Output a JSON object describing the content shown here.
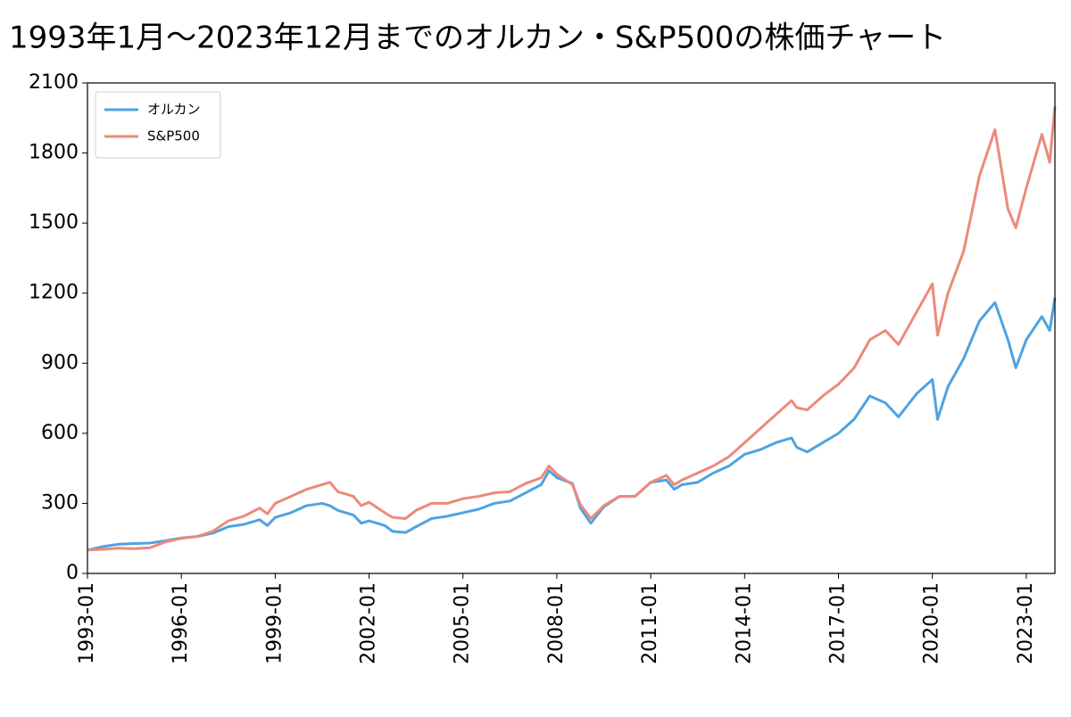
{
  "chart_data": {
    "type": "line",
    "title": "1993年1月～2023年12月までのオルカン・S&P500の株価チャート",
    "x": [
      "1993-01",
      "1993-07",
      "1994-01",
      "1994-07",
      "1995-01",
      "1995-07",
      "1996-01",
      "1996-07",
      "1997-01",
      "1997-07",
      "1998-01",
      "1998-07",
      "1998-10",
      "1999-01",
      "1999-07",
      "2000-01",
      "2000-07",
      "2000-10",
      "2001-01",
      "2001-07",
      "2001-10",
      "2002-01",
      "2002-07",
      "2002-10",
      "2003-03",
      "2003-07",
      "2004-01",
      "2004-07",
      "2005-01",
      "2005-07",
      "2006-01",
      "2006-07",
      "2007-01",
      "2007-07",
      "2007-10",
      "2008-01",
      "2008-07",
      "2008-10",
      "2009-02",
      "2009-07",
      "2010-01",
      "2010-07",
      "2011-01",
      "2011-07",
      "2011-10",
      "2012-01",
      "2012-07",
      "2013-01",
      "2013-07",
      "2014-01",
      "2014-07",
      "2015-01",
      "2015-07",
      "2015-09",
      "2016-01",
      "2016-07",
      "2017-01",
      "2017-07",
      "2018-01",
      "2018-07",
      "2018-12",
      "2019-07",
      "2020-01",
      "2020-03",
      "2020-07",
      "2021-01",
      "2021-07",
      "2022-01",
      "2022-06",
      "2022-09",
      "2023-01",
      "2023-07",
      "2023-10",
      "2023-12"
    ],
    "series": [
      {
        "name": "オルカン",
        "color": "#4ea3e0",
        "values": [
          100,
          115,
          125,
          128,
          130,
          140,
          152,
          158,
          172,
          200,
          210,
          230,
          205,
          240,
          260,
          290,
          300,
          290,
          270,
          250,
          215,
          225,
          205,
          180,
          175,
          200,
          235,
          245,
          260,
          275,
          300,
          310,
          345,
          380,
          440,
          410,
          385,
          280,
          215,
          285,
          330,
          330,
          390,
          400,
          360,
          380,
          390,
          430,
          460,
          510,
          530,
          560,
          580,
          540,
          520,
          560,
          600,
          660,
          760,
          730,
          670,
          770,
          830,
          660,
          800,
          920,
          1080,
          1160,
          1000,
          880,
          1000,
          1100,
          1040,
          1180
        ]
      },
      {
        "name": "S&P500",
        "color": "#ec8a7a",
        "values": [
          100,
          103,
          108,
          106,
          110,
          135,
          150,
          158,
          180,
          225,
          245,
          280,
          255,
          300,
          330,
          360,
          380,
          390,
          350,
          330,
          290,
          305,
          260,
          240,
          235,
          270,
          300,
          300,
          320,
          330,
          345,
          350,
          385,
          410,
          460,
          425,
          380,
          295,
          235,
          290,
          330,
          330,
          390,
          420,
          380,
          400,
          430,
          460,
          500,
          560,
          620,
          680,
          740,
          710,
          700,
          760,
          810,
          880,
          1000,
          1040,
          980,
          1120,
          1240,
          1020,
          1200,
          1380,
          1700,
          1900,
          1560,
          1480,
          1650,
          1880,
          1760,
          2000
        ]
      }
    ],
    "xlim": [
      "1993-01",
      "2023-12"
    ],
    "xticks": [
      "1993-01",
      "1996-01",
      "1999-01",
      "2002-01",
      "2005-01",
      "2008-01",
      "2011-01",
      "2014-01",
      "2017-01",
      "2020-01",
      "2023-01"
    ],
    "ylim": [
      0,
      2100
    ],
    "yticks": [
      0,
      300,
      600,
      900,
      1200,
      1500,
      1800,
      2100
    ],
    "legend": "upper left"
  }
}
